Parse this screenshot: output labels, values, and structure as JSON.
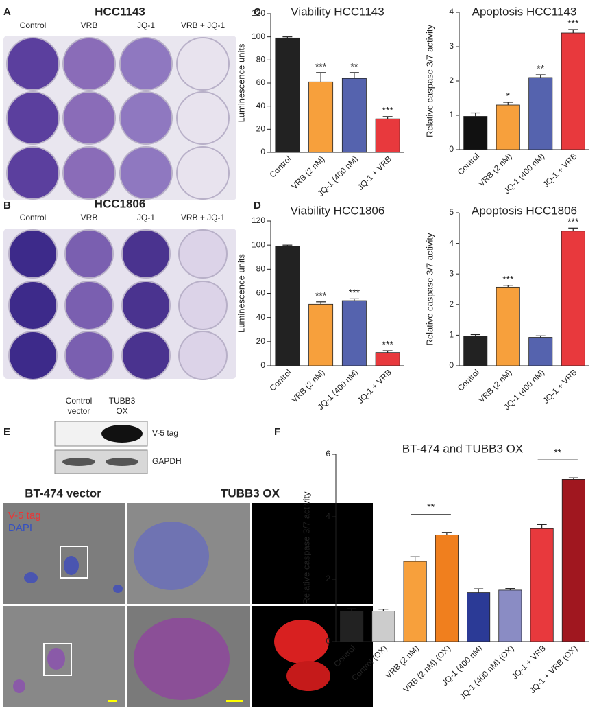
{
  "panel_labels": [
    "A",
    "B",
    "C",
    "D",
    "E",
    "F"
  ],
  "plates": [
    {
      "title": "HCC1143",
      "columns": [
        "Control",
        "VRB",
        "JQ-1",
        "VRB + JQ-1"
      ]
    },
    {
      "title": "HCC1806",
      "columns": [
        "Control",
        "VRB",
        "JQ-1",
        "VRB + JQ-1"
      ]
    }
  ],
  "blot": {
    "columns": [
      [
        "Control",
        "vector"
      ],
      [
        "TUBB3",
        "OX"
      ]
    ],
    "bands": [
      "V-5 tag",
      "GAPDH"
    ]
  },
  "microscopy": {
    "titles": [
      "BT-474 vector",
      "TUBB3 OX"
    ],
    "legend": [
      "V-5 tag",
      "DAPI"
    ]
  },
  "chart_data": [
    {
      "type": "bar",
      "title": "Viability HCC1143",
      "ylabel": "Luminescence units",
      "categories": [
        "Control",
        "VRB (2 nM)",
        "JQ-1 (400 nM)",
        "JQ-1 + VRB"
      ],
      "values": [
        99,
        61,
        64,
        29
      ],
      "errors": [
        1,
        8,
        5,
        2
      ],
      "significance": [
        null,
        "***",
        "**",
        "***"
      ],
      "colors": [
        "#222222",
        "#f7a03c",
        "#5563ae",
        "#e8393d"
      ],
      "ylim": [
        0,
        120
      ],
      "yticks": [
        0,
        20,
        40,
        60,
        80,
        100,
        120
      ]
    },
    {
      "type": "bar",
      "title": "Apoptosis HCC1143",
      "ylabel": "Relative caspase 3/7 activity",
      "categories": [
        "Control",
        "VRB (2 nM)",
        "JQ-1 (400 nM)",
        "JQ-1 + VRB"
      ],
      "values": [
        0.97,
        1.3,
        2.1,
        3.4
      ],
      "errors": [
        0.1,
        0.08,
        0.08,
        0.1
      ],
      "significance": [
        null,
        "*",
        "**",
        "***"
      ],
      "colors": [
        "#111111",
        "#f7a03c",
        "#5563ae",
        "#e8393d"
      ],
      "ylim": [
        0,
        4
      ],
      "yticks": [
        0,
        1,
        2,
        3,
        4
      ]
    },
    {
      "type": "bar",
      "title": "Viability HCC1806",
      "ylabel": "Luminescence units",
      "categories": [
        "Control",
        "VRB (2 nM)",
        "JQ-1 (400 nM)",
        "JQ-1 + VRB"
      ],
      "values": [
        99,
        51,
        54,
        11
      ],
      "errors": [
        1,
        2,
        1.5,
        1.5
      ],
      "significance": [
        null,
        "***",
        "***",
        "***"
      ],
      "colors": [
        "#222222",
        "#f7a03c",
        "#5563ae",
        "#e8393d"
      ],
      "ylim": [
        0,
        120
      ],
      "yticks": [
        0,
        20,
        40,
        60,
        80,
        100,
        120
      ]
    },
    {
      "type": "bar",
      "title": "Apoptosis HCC1806",
      "ylabel": "Relative caspase 3/7 activity",
      "categories": [
        "Control",
        "VRB (2 nM)",
        "JQ-1 (400 nM)",
        "JQ-1 + VRB"
      ],
      "values": [
        0.97,
        2.57,
        0.93,
        4.4
      ],
      "errors": [
        0.05,
        0.06,
        0.05,
        0.1
      ],
      "significance": [
        null,
        "***",
        null,
        "***"
      ],
      "colors": [
        "#222222",
        "#f7a03c",
        "#5563ae",
        "#e8393d"
      ],
      "ylim": [
        0,
        5
      ],
      "yticks": [
        0,
        1,
        2,
        3,
        4,
        5
      ]
    },
    {
      "type": "bar",
      "title": "BT-474 and TUBB3 OX",
      "ylabel": "Relative caspase 3/7 activity",
      "categories": [
        "Control",
        "Control (OX)",
        "VRB (2 nM)",
        "VRB (2 nM) (OX)",
        "JQ-1 (400 nM)",
        "JQ-1 (400 nM) (OX)",
        "JQ-1 + VRB",
        "JQ-1 + VRB (OX)"
      ],
      "values": [
        0.97,
        0.98,
        2.57,
        3.42,
        1.57,
        1.65,
        3.62,
        5.2
      ],
      "errors": [
        0.08,
        0.06,
        0.15,
        0.08,
        0.12,
        0.05,
        0.13,
        0.05
      ],
      "colors": [
        "#222222",
        "#cccccc",
        "#f7a03c",
        "#f07f1e",
        "#2b3a96",
        "#8a8cc4",
        "#e8393d",
        "#a0171f"
      ],
      "brackets": [
        {
          "text": "**",
          "between": [
            "VRB (2 nM)",
            "VRB (2 nM) (OX)"
          ]
        },
        {
          "text": "**",
          "between": [
            "JQ-1 + VRB",
            "JQ-1 + VRB (OX)"
          ]
        }
      ],
      "ylim": [
        0,
        6
      ],
      "yticks": [
        0,
        2,
        4,
        6
      ]
    }
  ]
}
